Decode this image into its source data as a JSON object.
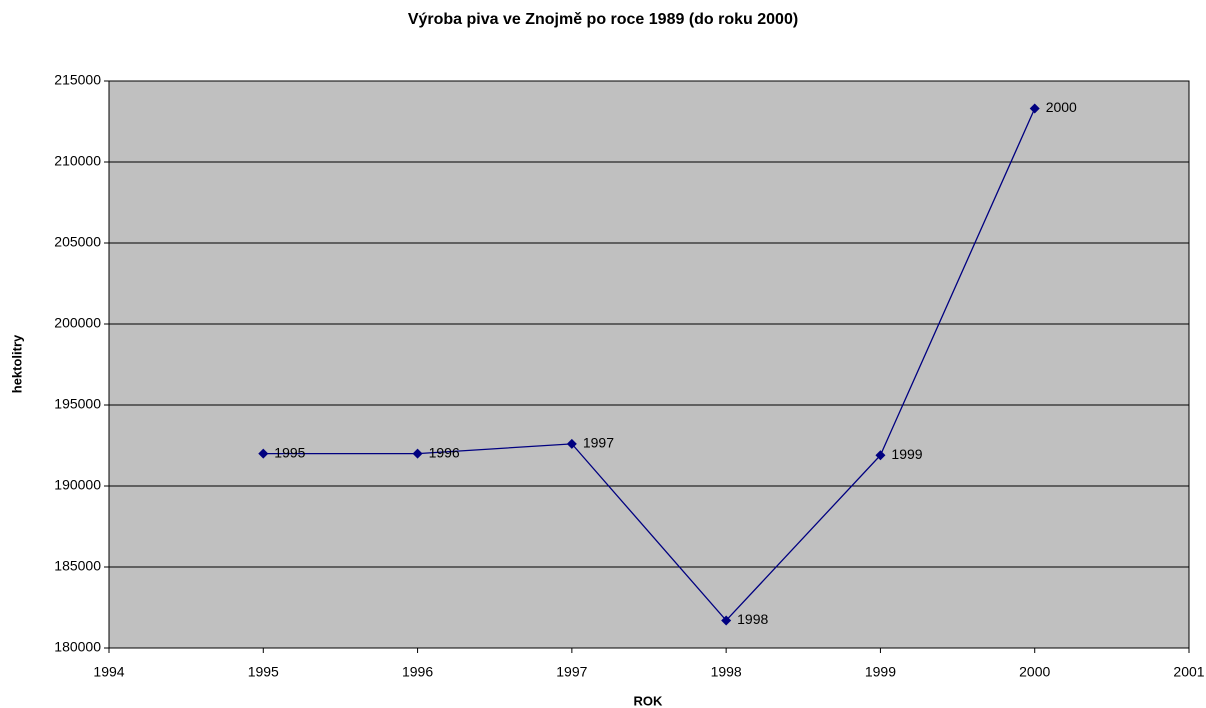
{
  "chart_data": {
    "type": "line",
    "title": "Výroba piva ve Znojmě po roce 1989 (do roku 2000)",
    "x_label": "ROK",
    "y_label": "hektolitry",
    "x": [
      1995,
      1996,
      1997,
      1998,
      1999,
      2000
    ],
    "series": [
      {
        "name": "Výroba piva",
        "color": "#000080",
        "values": [
          192000,
          192000,
          192600,
          181700,
          191900,
          213300
        ]
      }
    ],
    "xlim": [
      1994,
      2001
    ],
    "xticks": [
      1994,
      1995,
      1996,
      1997,
      1998,
      1999,
      2000,
      2001
    ],
    "ylim": [
      180000,
      215000
    ],
    "yticks": [
      180000,
      185000,
      190000,
      195000,
      200000,
      205000,
      210000,
      215000
    ],
    "grid": true,
    "plot_background": "#c0c0c0"
  }
}
